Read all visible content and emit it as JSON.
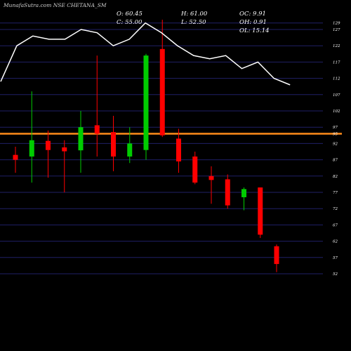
{
  "header": {
    "title": "MunafaSutra.com NSE CHETANA_SM",
    "open_label": "O: 60.45",
    "close_label": "C: 55.00",
    "high_label": "H: 61.00",
    "low_label": "L: 52.50",
    "oc_label": "OC: 9.91",
    "oh_label": "OH: 0.91",
    "ol_label": "OL: 15.14"
  },
  "chart_data": {
    "type": "candlestick",
    "y_tick_labels": [
      "129",
      "127",
      "122",
      "117",
      "112",
      "107",
      "102",
      "97",
      "92",
      "87",
      "82",
      "77",
      "72",
      "67",
      "62",
      "57",
      "52"
    ],
    "grid": true,
    "reference_line": {
      "label": "95",
      "value": 95,
      "color": "#ff8c1a"
    },
    "colors": {
      "up": "#00cc00",
      "down": "#ff0000",
      "line": "#ffffff",
      "grid": "#1f1f66"
    },
    "candles": [
      {
        "open": 88.5,
        "close": 87.0,
        "high": 91.0,
        "low": 83.0
      },
      {
        "open": 88.0,
        "close": 93.0,
        "high": 108.0,
        "low": 80.0
      },
      {
        "open": 92.8,
        "close": 90.0,
        "high": 96.0,
        "low": 81.5
      },
      {
        "open": 90.8,
        "close": 89.6,
        "high": 93.0,
        "low": 77.0
      },
      {
        "open": 89.9,
        "close": 97.0,
        "high": 102.0,
        "low": 83.0
      },
      {
        "open": 97.6,
        "close": 95.0,
        "high": 119.0,
        "low": 88.0
      },
      {
        "open": 95.5,
        "close": 88.0,
        "high": 100.5,
        "low": 83.5
      },
      {
        "open": 88.0,
        "close": 92.0,
        "high": 97.0,
        "low": 86.0
      },
      {
        "open": 90.0,
        "close": 119.0,
        "high": 119.5,
        "low": 87.0
      },
      {
        "open": 121.0,
        "close": 94.5,
        "high": 130.0,
        "low": 94.0
      },
      {
        "open": 93.5,
        "close": 86.5,
        "high": 96.5,
        "low": 83.0
      },
      {
        "open": 88.0,
        "close": 80.0,
        "high": 89.5,
        "low": 79.5
      },
      {
        "open": 82.0,
        "close": 80.8,
        "high": 85.0,
        "low": 73.5
      },
      {
        "open": 81.0,
        "close": 73.0,
        "high": 82.5,
        "low": 72.0
      },
      {
        "open": 75.5,
        "close": 78.0,
        "high": 78.5,
        "low": 71.5
      },
      {
        "open": 78.5,
        "close": 64.0,
        "high": 78.5,
        "low": 63.0
      },
      {
        "open": 60.45,
        "close": 55.0,
        "high": 61.0,
        "low": 52.5
      }
    ],
    "line_series": [
      111,
      122,
      125,
      124,
      124,
      127,
      126,
      122,
      124,
      129,
      126,
      122,
      119,
      118,
      119,
      115,
      117,
      112,
      110
    ]
  }
}
